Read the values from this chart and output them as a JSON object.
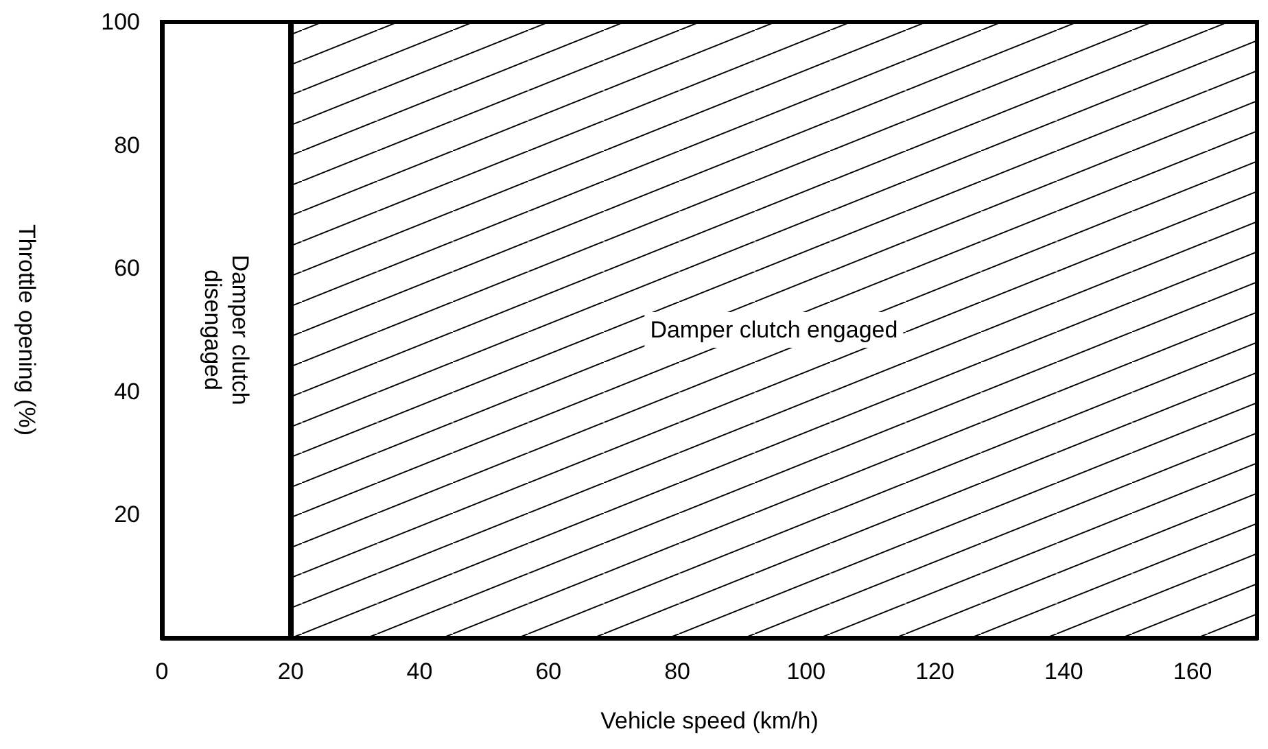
{
  "chart_data": {
    "type": "area",
    "xlabel": "Vehicle speed (km/h)",
    "ylabel": "Throttle opening (%)",
    "xlim": [
      0,
      170
    ],
    "xticks": [
      0,
      20,
      40,
      60,
      80,
      100,
      120,
      140,
      160
    ],
    "ylim": [
      0,
      100
    ],
    "yticks": [
      20,
      40,
      60,
      80,
      100
    ],
    "marker": "none",
    "series": [
      {
        "color": "#000000",
        "x": [
          20,
          170
        ],
        "values": [
          100,
          100
        ]
      }
    ],
    "ref_lines": [
      {
        "axis": "x",
        "value": 20,
        "label": null
      }
    ],
    "annotations": [
      "Damper clutch disengaged",
      "Damper clutch engaged"
    ]
  }
}
